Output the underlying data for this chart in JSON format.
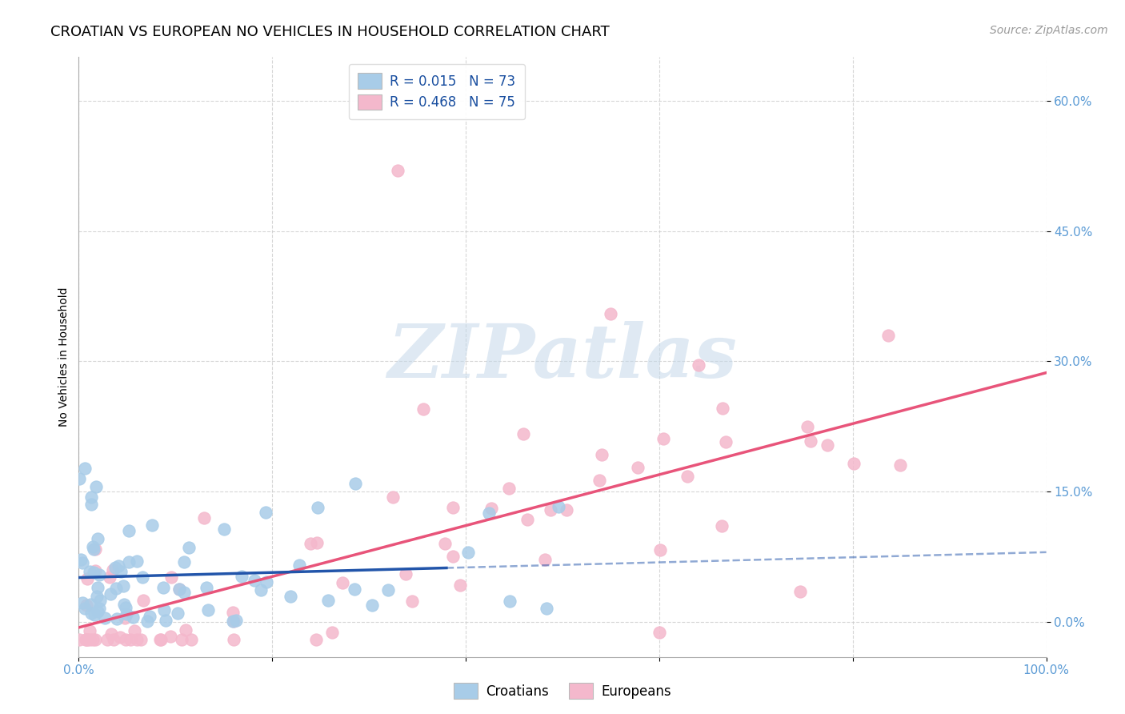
{
  "title": "CROATIAN VS EUROPEAN NO VEHICLES IN HOUSEHOLD CORRELATION CHART",
  "source": "Source: ZipAtlas.com",
  "ylabel": "No Vehicles in Household",
  "xlim": [
    0.0,
    1.0
  ],
  "ylim": [
    -0.04,
    0.65
  ],
  "yticks": [
    0.0,
    0.15,
    0.3,
    0.45,
    0.6
  ],
  "ytick_labels": [
    "0.0%",
    "15.0%",
    "30.0%",
    "45.0%",
    "60.0%"
  ],
  "xtick_positions": [
    0.0,
    0.2,
    0.4,
    0.6,
    0.8,
    1.0
  ],
  "xtick_labels": [
    "0.0%",
    "",
    "",
    "",
    "",
    "100.0%"
  ],
  "croatian_color": "#a8cce8",
  "european_color": "#f4b8cc",
  "croatian_line_color": "#2255aa",
  "european_line_color": "#e8547a",
  "croatian_R": 0.015,
  "croatian_N": 73,
  "european_R": 0.468,
  "european_N": 75,
  "watermark_text": "ZIPatlas",
  "watermark_color": "#c5d8ea",
  "background_color": "#ffffff",
  "grid_color": "#cccccc",
  "tick_color": "#5b9bd5",
  "title_fontsize": 13,
  "label_fontsize": 10,
  "tick_fontsize": 11,
  "legend_fontsize": 12,
  "source_fontsize": 10
}
